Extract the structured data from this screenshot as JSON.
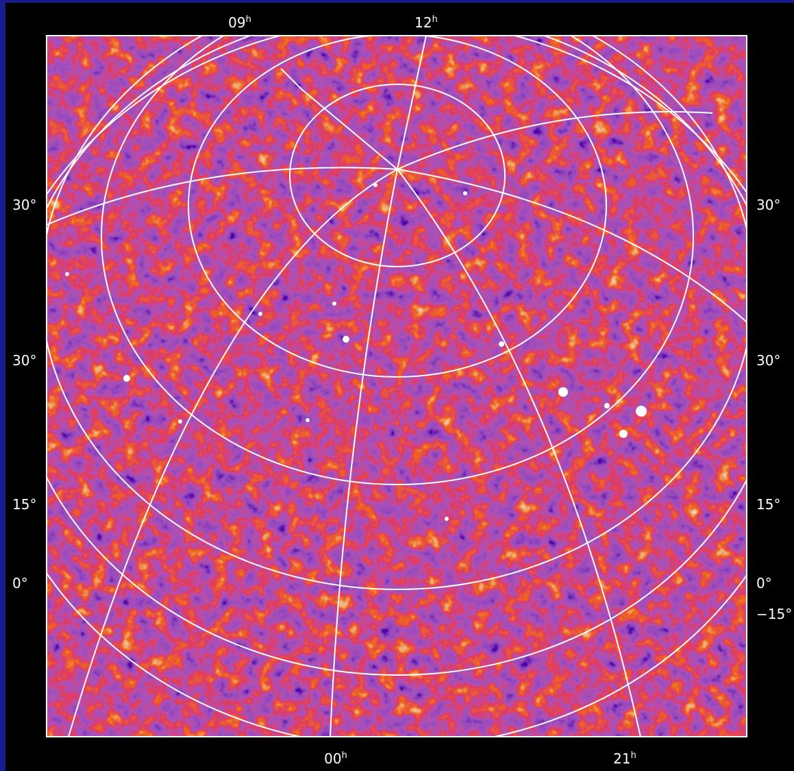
{
  "axis_labels": {
    "top": [
      {
        "main": "09",
        "sup": "h"
      },
      {
        "main": "12",
        "sup": "h"
      }
    ],
    "bottom": [
      {
        "main": "00",
        "sup": "h"
      },
      {
        "main": "21",
        "sup": "h"
      }
    ],
    "left": [
      "30°",
      "30°",
      "15°",
      "0°"
    ],
    "right": [
      "30°",
      "30°",
      "15°",
      "0°",
      "−15°"
    ]
  }
}
